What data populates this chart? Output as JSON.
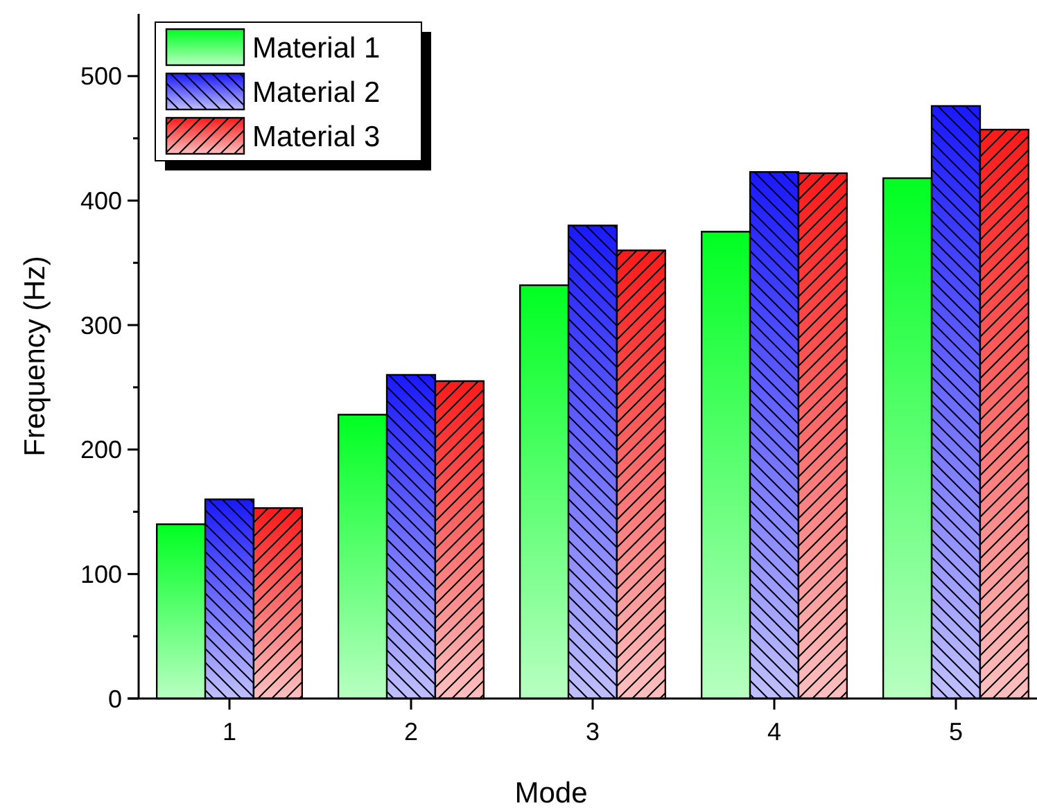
{
  "chart_data": {
    "type": "bar",
    "xlabel": "Mode",
    "ylabel": "Frequency (Hz)",
    "categories": [
      "1",
      "2",
      "3",
      "4",
      "5"
    ],
    "series": [
      {
        "name": "Material 1",
        "color": "#00ff22",
        "values": [
          140,
          228,
          332,
          375,
          418
        ]
      },
      {
        "name": "Material 2",
        "color": "#1a1aff",
        "values": [
          160,
          260,
          380,
          423,
          476
        ]
      },
      {
        "name": "Material 3",
        "color": "#ff1a1a",
        "values": [
          153,
          255,
          360,
          422,
          457
        ]
      }
    ],
    "ylim": [
      0,
      550
    ],
    "yticks": [
      0,
      {
        "value": 50,
        "label": null
      },
      100,
      {
        "value": 150,
        "label": null
      },
      200,
      {
        "value": 250,
        "label": null
      },
      300,
      {
        "value": 350,
        "label": null
      },
      400,
      {
        "value": 450,
        "label": null
      },
      500
    ],
    "legend": "top left",
    "grid": false
  }
}
